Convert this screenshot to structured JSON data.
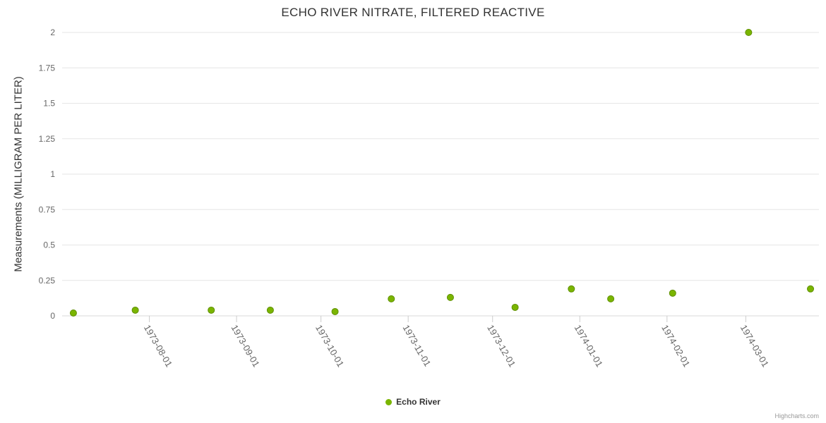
{
  "page": {
    "credits_label": "Highcharts.com"
  },
  "chart_data": {
    "type": "scatter",
    "title": "ECHO RIVER NITRATE, FILTERED REACTIVE",
    "xlabel": "",
    "ylabel": "Measurements (MILLIGRAM PER LITER)",
    "ylim": [
      0,
      2
    ],
    "yticks": [
      0,
      0.25,
      0.5,
      0.75,
      1,
      1.25,
      1.5,
      1.75,
      2
    ],
    "ytick_labels": [
      "0",
      "0.25",
      "0.5",
      "0.75",
      "1",
      "1.25",
      "1.5",
      "1.75",
      "2"
    ],
    "xticks": [
      "1973-08-01",
      "1973-09-01",
      "1973-10-01",
      "1973-11-01",
      "1973-12-01",
      "1974-01-01",
      "1974-02-01",
      "1974-03-01"
    ],
    "xaxis_range": [
      "1973-07-01",
      "1974-03-27"
    ],
    "grid": true,
    "legend_position": "bottom-center",
    "colors": {
      "grid": "#e6e6e6",
      "axis_line": "#d8d8d8",
      "tick": "#cccccc",
      "label_text": "#666666",
      "title_text": "#333333"
    },
    "series": [
      {
        "name": "Echo River",
        "color": "#7ab500",
        "marker_line_color": "#5f8f00",
        "points": [
          {
            "date": "1973-07-05",
            "value": 0.02
          },
          {
            "date": "1973-07-27",
            "value": 0.04
          },
          {
            "date": "1973-08-23",
            "value": 0.04
          },
          {
            "date": "1973-09-13",
            "value": 0.04
          },
          {
            "date": "1973-10-06",
            "value": 0.03
          },
          {
            "date": "1973-10-26",
            "value": 0.12
          },
          {
            "date": "1973-11-16",
            "value": 0.13
          },
          {
            "date": "1973-12-09",
            "value": 0.06
          },
          {
            "date": "1973-12-29",
            "value": 0.19
          },
          {
            "date": "1974-01-12",
            "value": 0.12
          },
          {
            "date": "1974-02-03",
            "value": 0.16
          },
          {
            "date": "1974-03-02",
            "value": 2.0
          },
          {
            "date": "1974-03-24",
            "value": 0.19
          }
        ]
      }
    ]
  }
}
